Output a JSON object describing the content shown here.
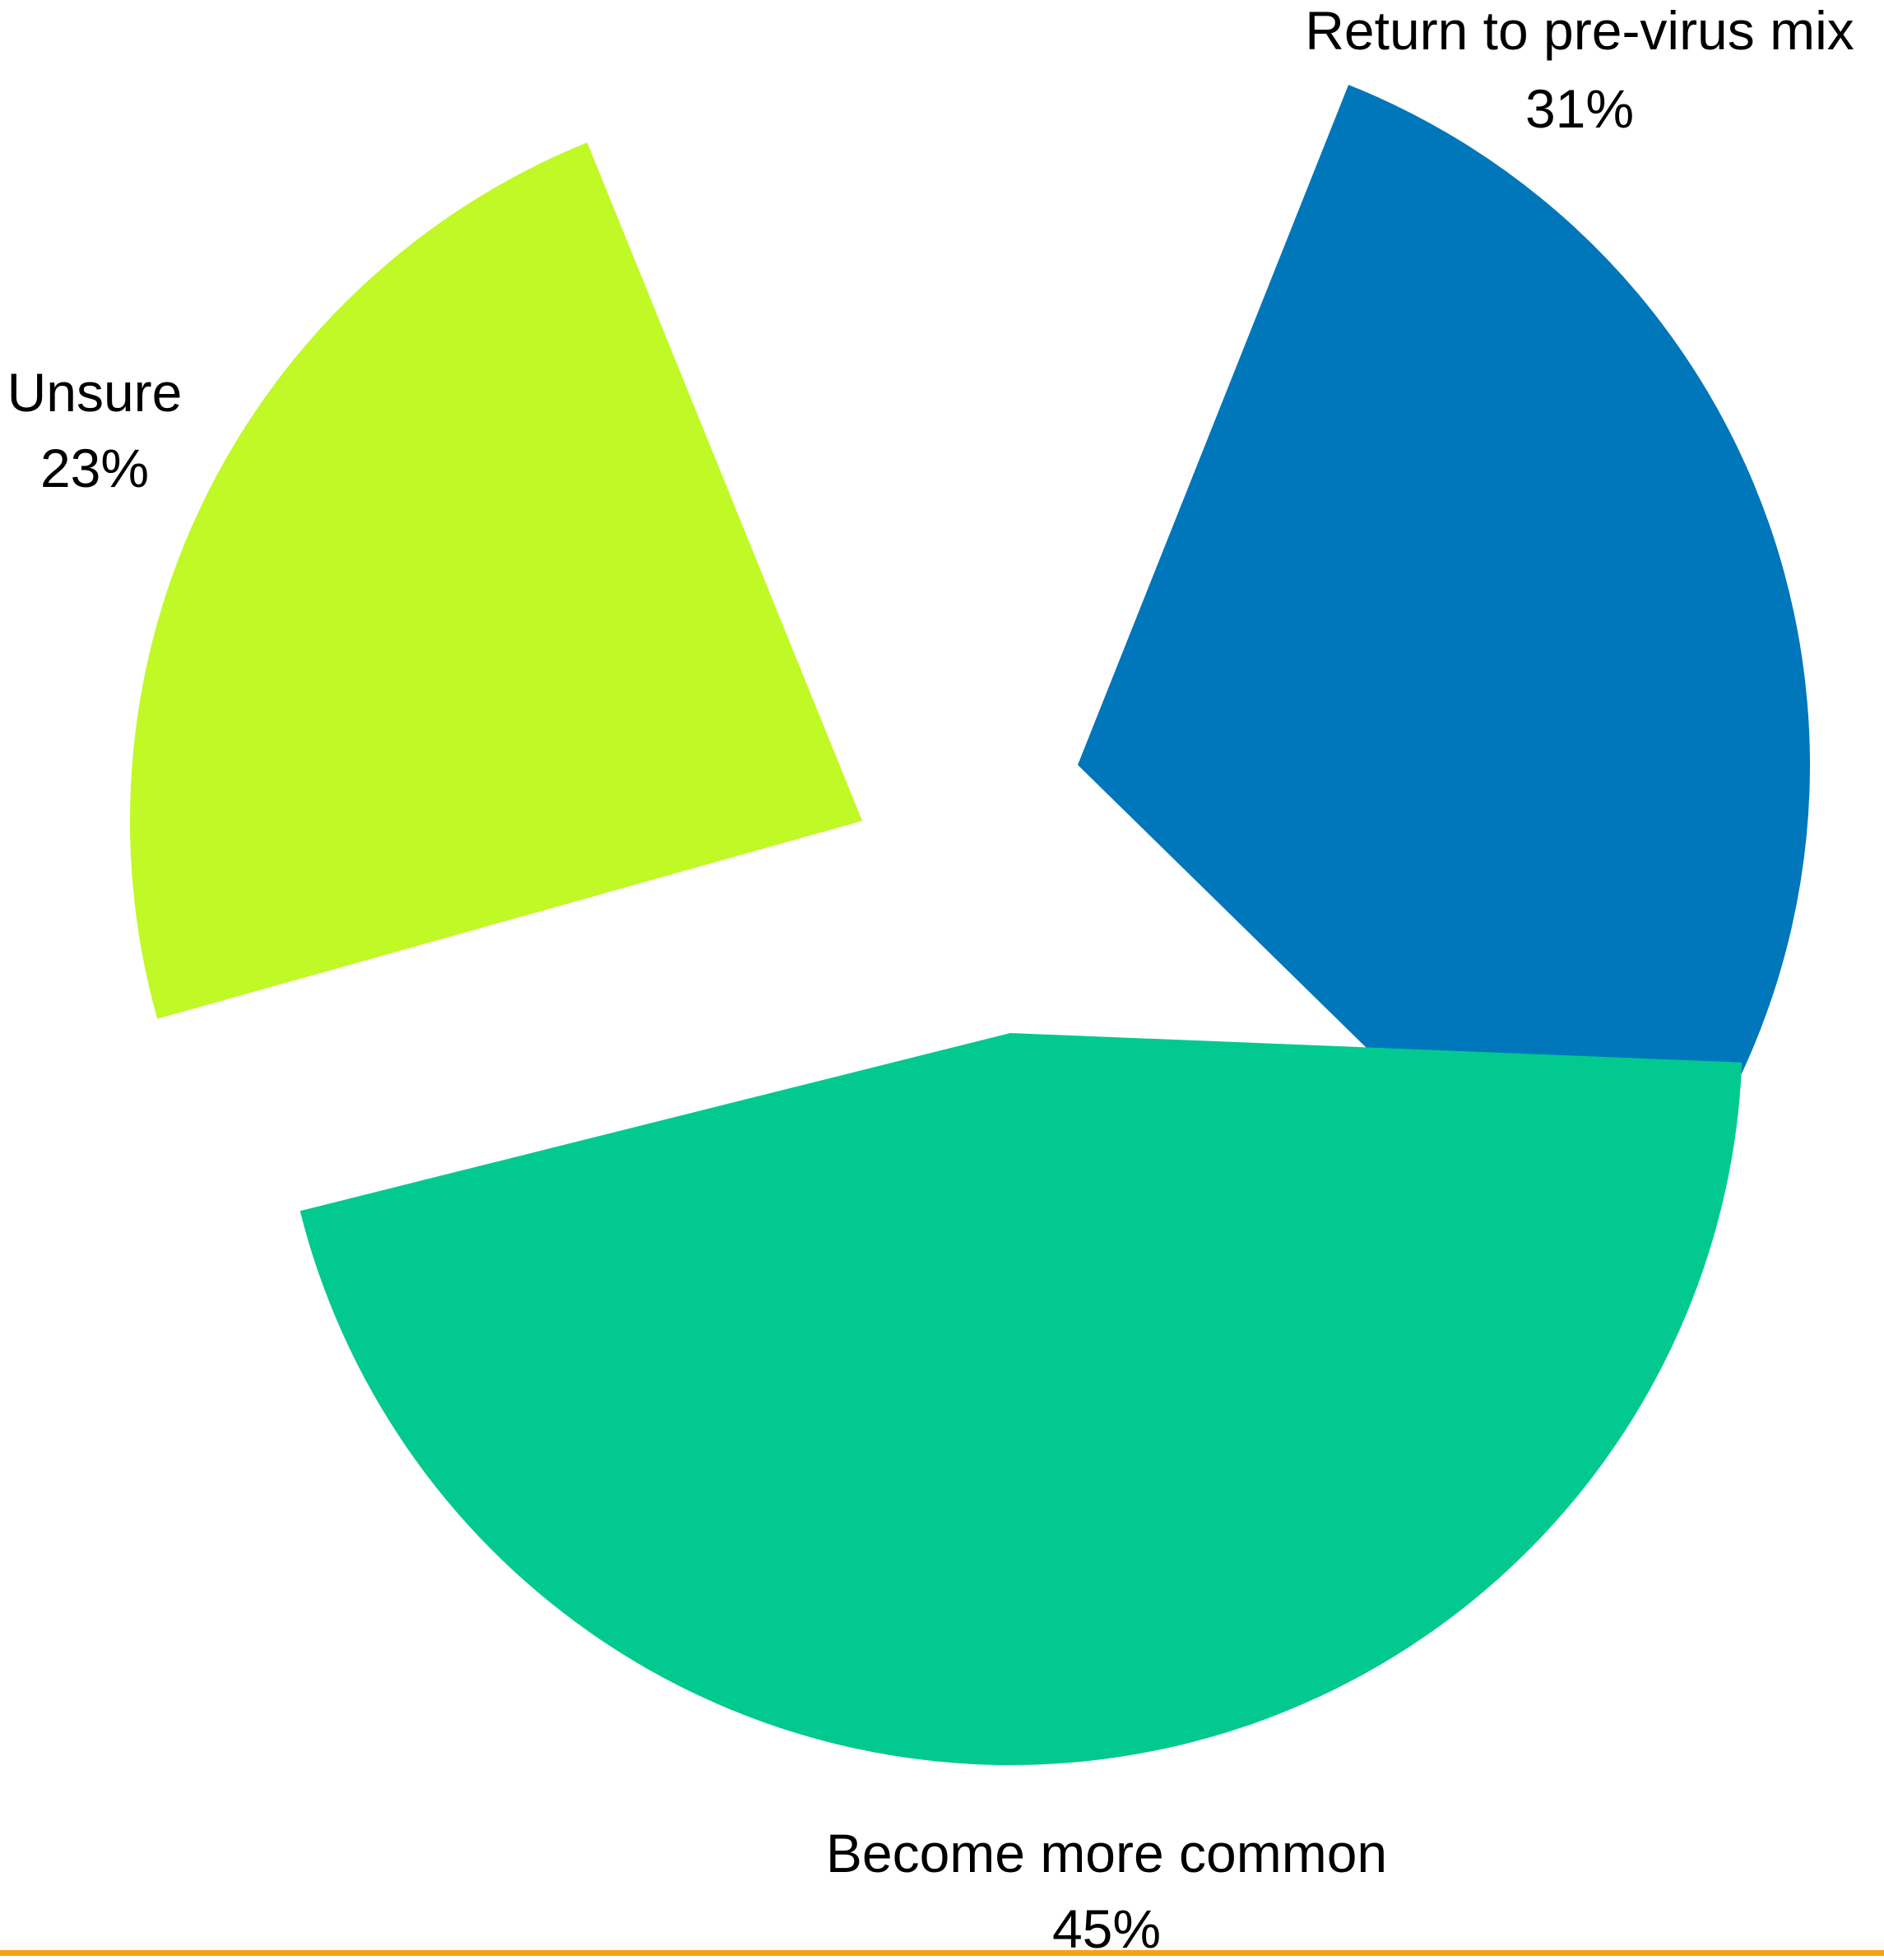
{
  "chart_data": {
    "type": "pie",
    "title": "",
    "slices": [
      {
        "label": "Return to pre-virus mix",
        "percent_label": "31%",
        "value": 31,
        "color": "#0076BB"
      },
      {
        "label": "Become more common",
        "percent_label": "45%",
        "value": 45,
        "color": "#02C98F"
      },
      {
        "label": "Unsure",
        "percent_label": "23%",
        "value": 23,
        "color": "#C0F925"
      }
    ],
    "exploded": true,
    "start_angle": "~22° clockwise from 12 o'clock",
    "direction": "clockwise",
    "legend": "none"
  },
  "colors": {
    "background": "#FFFFFF",
    "bottom_rule": "#F5A214"
  }
}
